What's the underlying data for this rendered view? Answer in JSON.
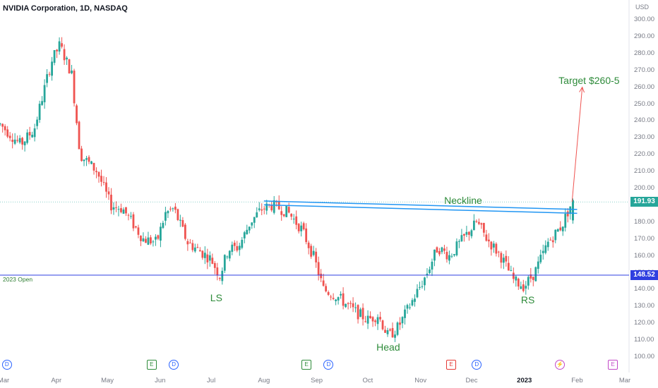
{
  "header": {
    "title": "NVIDIA Corporation, 1D, NASDAQ",
    "unit": "USD"
  },
  "chart_data": {
    "type": "candlestick",
    "ylim": [
      100,
      300
    ],
    "y_ticks": [
      "300.00",
      "290.00",
      "280.00",
      "270.00",
      "260.00",
      "250.00",
      "240.00",
      "230.00",
      "220.00",
      "210.00",
      "200.00",
      "190.00",
      "180.00",
      "170.00",
      "160.00",
      "150.00",
      "140.00",
      "130.00",
      "120.00",
      "110.00",
      "100.00"
    ],
    "y_tick_values": [
      300,
      290,
      280,
      270,
      260,
      250,
      240,
      230,
      220,
      210,
      200,
      190,
      180,
      170,
      160,
      150,
      140,
      130,
      120,
      110,
      100
    ],
    "x_ticks": [
      "Mar",
      "Apr",
      "May",
      "Jun",
      "Jul",
      "Aug",
      "Sep",
      "Oct",
      "Nov",
      "Dec",
      "2023",
      "Feb",
      "Mar"
    ],
    "x_tick_days": [
      0,
      31,
      61,
      92,
      122,
      153,
      184,
      214,
      245,
      275,
      306,
      337,
      365
    ],
    "last_price": "191.93",
    "open_2023": {
      "label": "2023 Open",
      "value": 148.52,
      "tag": "148.52"
    },
    "neckline": {
      "label": "Neckline",
      "start": [
        153,
        192.5
      ],
      "end": [
        337,
        187.5
      ],
      "width": 2.3
    },
    "target": {
      "label": "Target $260-5",
      "from": [
        334,
        192
      ],
      "to": [
        340,
        260
      ]
    },
    "annotations": [
      {
        "text": "LS",
        "day": 125,
        "price": 135
      },
      {
        "text": "Head",
        "day": 226,
        "price": 106
      },
      {
        "text": "RS",
        "day": 308,
        "price": 134
      }
    ],
    "anchors": [
      [
        -2,
        238
      ],
      [
        10,
        226
      ],
      [
        18,
        235
      ],
      [
        28,
        275
      ],
      [
        33,
        285
      ],
      [
        40,
        268
      ],
      [
        45,
        220
      ],
      [
        55,
        210
      ],
      [
        63,
        190
      ],
      [
        70,
        188
      ],
      [
        82,
        170
      ],
      [
        90,
        168
      ],
      [
        95,
        185
      ],
      [
        100,
        188
      ],
      [
        108,
        168
      ],
      [
        115,
        163
      ],
      [
        122,
        158
      ],
      [
        127,
        148
      ],
      [
        132,
        164
      ],
      [
        138,
        165
      ],
      [
        145,
        180
      ],
      [
        152,
        188
      ],
      [
        158,
        190
      ],
      [
        167,
        186
      ],
      [
        175,
        176
      ],
      [
        182,
        160
      ],
      [
        188,
        140
      ],
      [
        196,
        136
      ],
      [
        205,
        128
      ],
      [
        214,
        122
      ],
      [
        220,
        125
      ],
      [
        226,
        112
      ],
      [
        232,
        118
      ],
      [
        240,
        133
      ],
      [
        248,
        148
      ],
      [
        255,
        165
      ],
      [
        262,
        160
      ],
      [
        270,
        170
      ],
      [
        278,
        180
      ],
      [
        284,
        170
      ],
      [
        292,
        160
      ],
      [
        300,
        145
      ],
      [
        306,
        142
      ],
      [
        312,
        150
      ],
      [
        320,
        168
      ],
      [
        328,
        178
      ],
      [
        334,
        192
      ]
    ],
    "candle_step_days": 1.45,
    "colors": {
      "up": "#26a69a",
      "down": "#ef5350",
      "neckline": "#2196f3",
      "open_line": "#2f3fe0",
      "target": "#ef5350",
      "annotation": "#2e8b3a"
    }
  },
  "events": [
    {
      "type": "d",
      "glyph": "D",
      "day": 2
    },
    {
      "type": "e",
      "glyph": "E",
      "day": 87
    },
    {
      "type": "d",
      "glyph": "D",
      "day": 100
    },
    {
      "type": "e",
      "glyph": "E",
      "day": 178
    },
    {
      "type": "d",
      "glyph": "D",
      "day": 191
    },
    {
      "type": "er",
      "glyph": "E",
      "day": 263
    },
    {
      "type": "d",
      "glyph": "D",
      "day": 278
    },
    {
      "type": "s",
      "glyph": "⚡",
      "day": 327
    },
    {
      "type": "em",
      "glyph": "E",
      "day": 358
    }
  ]
}
